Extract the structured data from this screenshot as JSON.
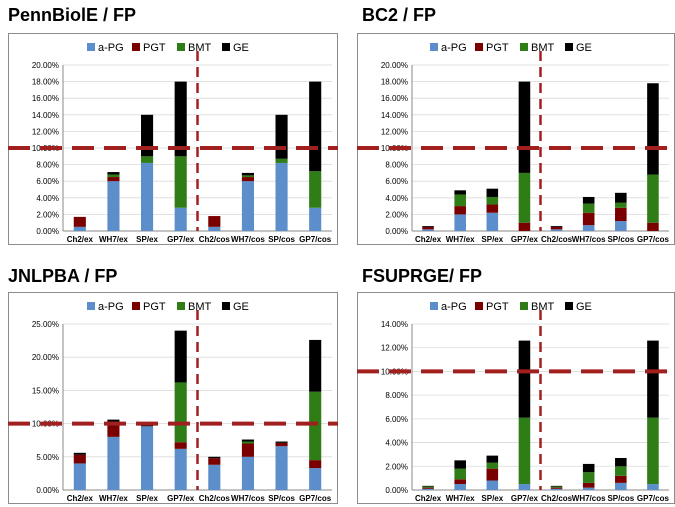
{
  "legend_colors": {
    "a-PG": "#5b8ecb",
    "PGT": "#7a0000",
    "BMT": "#2e7d16",
    "GE": "#000000"
  },
  "threshold_color": "#a02020",
  "chart_data": [
    {
      "type": "bar",
      "stacked": true,
      "title": "PennBiolE  / FP",
      "categories": [
        "Ch2/ex",
        "WH7/ex",
        "SP/ex",
        "GP7/ex",
        "Ch2/cos",
        "WH7/cos",
        "SP/cos",
        "GP7/cos"
      ],
      "series": [
        {
          "name": "a-PG",
          "values": [
            0.5,
            6.0,
            8.2,
            2.8,
            0.5,
            6.0,
            8.2,
            2.8
          ]
        },
        {
          "name": "PGT",
          "values": [
            1.2,
            0.5,
            0.0,
            0.0,
            1.3,
            0.5,
            0.0,
            0.0
          ]
        },
        {
          "name": "BMT",
          "values": [
            0.0,
            0.3,
            0.8,
            6.2,
            0.0,
            0.2,
            0.5,
            4.4
          ]
        },
        {
          "name": "GE",
          "values": [
            0.0,
            0.3,
            5.0,
            9.0,
            0.0,
            0.3,
            5.3,
            10.8
          ]
        }
      ],
      "yticks": [
        "0.00%",
        "2.00%",
        "4.00%",
        "6.00%",
        "8.00%",
        "10.00%",
        "12.00%",
        "14.00%",
        "16.00%",
        "18.00%",
        "20.00%"
      ],
      "ylim": [
        0,
        20
      ],
      "threshold": 10,
      "divider_after_index": 3,
      "legend_position": "top"
    },
    {
      "type": "bar",
      "stacked": true,
      "title": "BC2  / FP",
      "categories": [
        "Ch2/ex",
        "WH7/ex",
        "SP/ex",
        "GP7/ex",
        "Ch2/cos",
        "WH7/cos",
        "SP/cos",
        "GP7/cos"
      ],
      "series": [
        {
          "name": "a-PG",
          "values": [
            0.2,
            2.0,
            2.2,
            0.0,
            0.2,
            0.7,
            1.2,
            0.0
          ]
        },
        {
          "name": "PGT",
          "values": [
            0.3,
            1.0,
            1.0,
            1.0,
            0.3,
            1.5,
            1.6,
            1.0
          ]
        },
        {
          "name": "BMT",
          "values": [
            0.0,
            1.4,
            0.9,
            6.0,
            0.0,
            1.1,
            0.6,
            5.8
          ]
        },
        {
          "name": "GE",
          "values": [
            0.1,
            0.5,
            1.0,
            11.0,
            0.1,
            0.8,
            1.2,
            11.0
          ]
        }
      ],
      "yticks": [
        "0.00%",
        "2.00%",
        "4.00%",
        "6.00%",
        "8.00%",
        "10.00%",
        "12.00%",
        "14.00%",
        "16.00%",
        "18.00%",
        "20.00%"
      ],
      "ylim": [
        0,
        20
      ],
      "threshold": 10,
      "divider_after_index": 3,
      "legend_position": "top"
    },
    {
      "type": "bar",
      "stacked": true,
      "title": "JNLPBA  / FP",
      "categories": [
        "Ch2/ex",
        "WH7/ex",
        "SP/ex",
        "GP7/ex",
        "Ch2/cos",
        "WH7/cos",
        "SP/cos",
        "GP7/cos"
      ],
      "series": [
        {
          "name": "a-PG",
          "values": [
            4.0,
            8.0,
            9.6,
            6.2,
            3.8,
            5.0,
            6.6,
            3.3
          ]
        },
        {
          "name": "PGT",
          "values": [
            1.3,
            2.3,
            0.0,
            1.0,
            1.0,
            2.0,
            0.5,
            1.2
          ]
        },
        {
          "name": "BMT",
          "values": [
            0.0,
            0.0,
            0.0,
            9.0,
            0.0,
            0.3,
            0.0,
            10.3
          ]
        },
        {
          "name": "GE",
          "values": [
            0.3,
            0.3,
            0.5,
            7.8,
            0.2,
            0.3,
            0.2,
            7.8
          ]
        }
      ],
      "yticks": [
        "0.00%",
        "5.00%",
        "10.00%",
        "15.00%",
        "20.00%",
        "25.00%"
      ],
      "ylim": [
        0,
        25
      ],
      "threshold": 10,
      "divider_after_index": 3,
      "legend_position": "top"
    },
    {
      "type": "bar",
      "stacked": true,
      "title": "FSUPRGE/ FP",
      "categories": [
        "Ch2/ex",
        "WH7/ex",
        "SP/ex",
        "GP7/ex",
        "Ch2/cos",
        "WH7/cos",
        "SP/cos",
        "GP7/cos"
      ],
      "series": [
        {
          "name": "a-PG",
          "values": [
            0.1,
            0.5,
            0.8,
            0.5,
            0.1,
            0.2,
            0.6,
            0.5
          ]
        },
        {
          "name": "PGT",
          "values": [
            0.1,
            0.4,
            1.0,
            0.0,
            0.1,
            0.4,
            0.6,
            0.0
          ]
        },
        {
          "name": "BMT",
          "values": [
            0.1,
            0.9,
            0.5,
            5.6,
            0.1,
            0.9,
            0.8,
            5.6
          ]
        },
        {
          "name": "GE",
          "values": [
            0.05,
            0.7,
            0.6,
            6.5,
            0.05,
            0.7,
            0.7,
            6.5
          ]
        }
      ],
      "yticks": [
        "0.00%",
        "2.00%",
        "4.00%",
        "6.00%",
        "8.00%",
        "10.00%",
        "12.00%",
        "14.00%"
      ],
      "ylim": [
        0,
        14
      ],
      "threshold": 10,
      "divider_after_index": 3,
      "legend_position": "top"
    }
  ]
}
